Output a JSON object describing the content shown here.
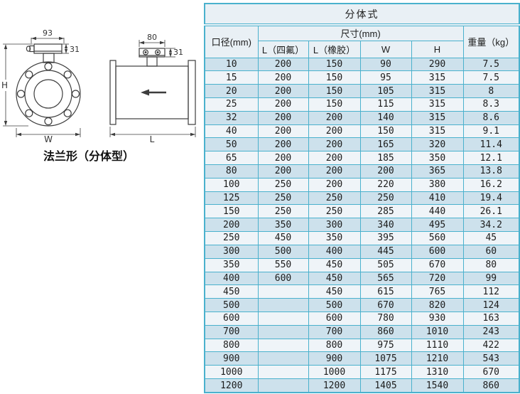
{
  "drawing": {
    "caption": "法兰形（分体型）",
    "front": {
      "width_dim": "93",
      "box_height_dim": "31",
      "height_label": "H",
      "width_label": "W"
    },
    "side": {
      "width_dim": "80",
      "box_height_dim": "31",
      "length_label": "L"
    }
  },
  "table": {
    "title": "分体式",
    "col_diameter": "口径(mm)",
    "col_size": "尺寸(mm)",
    "col_l_ptfe": "L（四氟）",
    "col_l_rubber": "L（橡胶）",
    "col_w": "W",
    "col_h": "H",
    "col_weight": "重量（kg）",
    "rows": [
      [
        "10",
        "200",
        "150",
        "90",
        "290",
        "7.5"
      ],
      [
        "15",
        "200",
        "150",
        "95",
        "315",
        "7.5"
      ],
      [
        "20",
        "200",
        "150",
        "105",
        "315",
        "8"
      ],
      [
        "25",
        "200",
        "150",
        "115",
        "315",
        "8.3"
      ],
      [
        "32",
        "200",
        "200",
        "140",
        "315",
        "8.6"
      ],
      [
        "40",
        "200",
        "200",
        "150",
        "315",
        "9.1"
      ],
      [
        "50",
        "200",
        "200",
        "165",
        "320",
        "11.4"
      ],
      [
        "65",
        "200",
        "200",
        "185",
        "350",
        "12.1"
      ],
      [
        "80",
        "200",
        "200",
        "200",
        "365",
        "13.8"
      ],
      [
        "100",
        "250",
        "200",
        "220",
        "380",
        "16.2"
      ],
      [
        "125",
        "250",
        "250",
        "250",
        "410",
        "19.4"
      ],
      [
        "150",
        "250",
        "250",
        "285",
        "440",
        "26.1"
      ],
      [
        "200",
        "350",
        "300",
        "340",
        "495",
        "34.2"
      ],
      [
        "250",
        "450",
        "350",
        "395",
        "560",
        "45"
      ],
      [
        "300",
        "500",
        "400",
        "445",
        "600",
        "60"
      ],
      [
        "350",
        "550",
        "450",
        "505",
        "670",
        "80"
      ],
      [
        "400",
        "600",
        "450",
        "565",
        "720",
        "99"
      ],
      [
        "450",
        "",
        "450",
        "615",
        "765",
        "112"
      ],
      [
        "500",
        "",
        "500",
        "670",
        "820",
        "124"
      ],
      [
        "600",
        "",
        "600",
        "780",
        "930",
        "163"
      ],
      [
        "700",
        "",
        "700",
        "860",
        "1010",
        "243"
      ],
      [
        "800",
        "",
        "800",
        "975",
        "1110",
        "422"
      ],
      [
        "900",
        "",
        "900",
        "1075",
        "1210",
        "543"
      ],
      [
        "1000",
        "",
        "1000",
        "1175",
        "1310",
        "670"
      ],
      [
        "1200",
        "",
        "1200",
        "1405",
        "1540",
        "860"
      ]
    ]
  }
}
